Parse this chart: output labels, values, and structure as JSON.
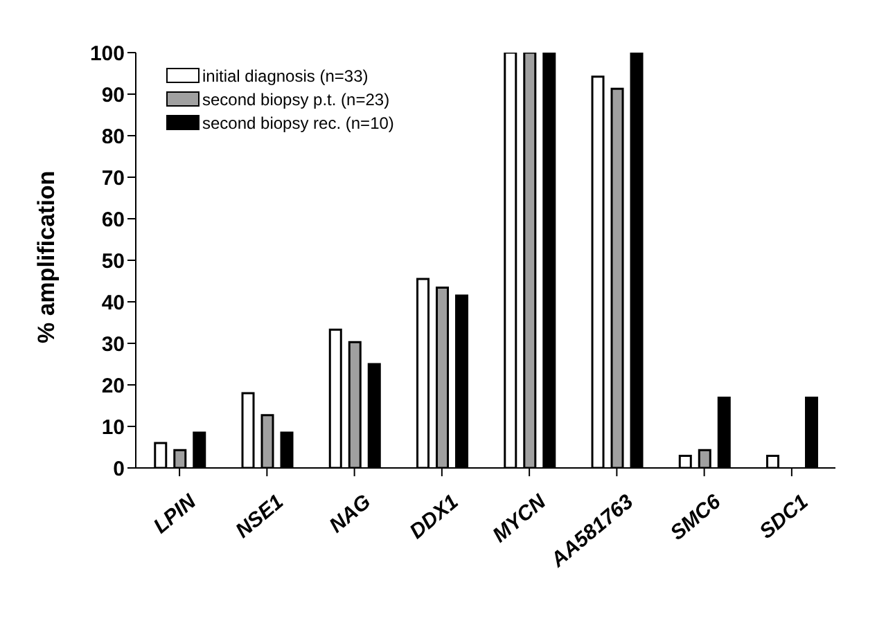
{
  "chart_data": {
    "type": "bar",
    "ylabel": "% amplification",
    "categories": [
      "LPIN",
      "NSE1",
      "NAG",
      "DDX1",
      "MYCN",
      "AA581763",
      "SMC6",
      "SDC1"
    ],
    "series": [
      {
        "name": "initial diagnosis (n=33)",
        "color": "#ffffff",
        "values": [
          6,
          18,
          33.3,
          45.5,
          100,
          94.2,
          2.9,
          2.9
        ]
      },
      {
        "name": "second biopsy p.t. (n=23)",
        "color": "#a0a0a0",
        "values": [
          4.3,
          12.7,
          30.3,
          43.4,
          100,
          91.3,
          4.3,
          0
        ]
      },
      {
        "name": "second biopsy rec. (n=10)",
        "color": "#000000",
        "values": [
          8.5,
          8.5,
          25,
          41.5,
          100,
          100,
          16.9,
          16.9
        ]
      }
    ],
    "ylim": [
      0,
      100
    ],
    "yticks": [
      0,
      10,
      20,
      30,
      40,
      50,
      60,
      70,
      80,
      90,
      100
    ],
    "grid": false,
    "legend": "top left"
  }
}
